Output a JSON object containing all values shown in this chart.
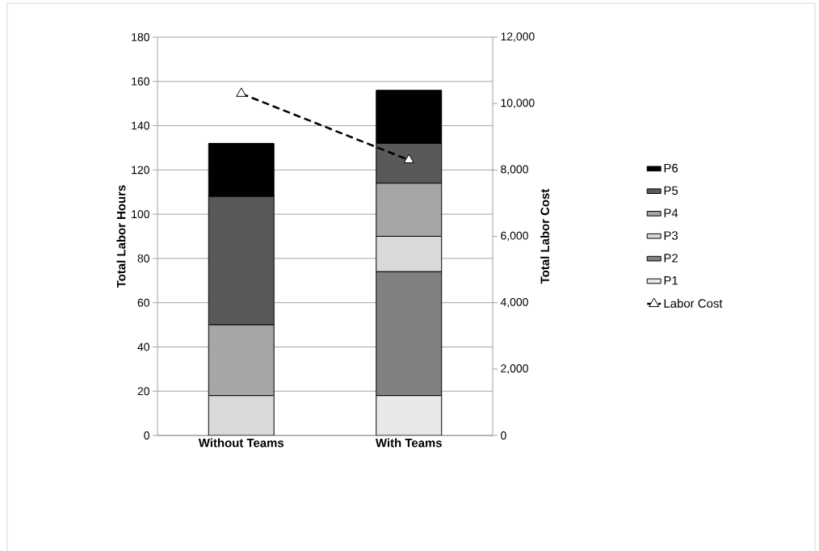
{
  "chart_data": {
    "type": "bar",
    "stacked": true,
    "categories": [
      "Without Teams",
      "With Teams"
    ],
    "ylabel": "Total Labor Hours",
    "y2label": "Total Labor Cost",
    "ylim": [
      0,
      180
    ],
    "yticks": [
      0,
      20,
      40,
      60,
      80,
      100,
      120,
      140,
      160,
      180
    ],
    "y2lim": [
      0,
      12000
    ],
    "y2ticks": [
      0,
      {
        "value": 2000,
        "label": "2,000"
      },
      {
        "value": 4000,
        "label": "4,000"
      },
      {
        "value": 6000,
        "label": "6,000"
      },
      {
        "value": 8000,
        "label": "8,000"
      },
      {
        "value": 10000,
        "label": "10,000"
      },
      {
        "value": 12000,
        "label": "12,000"
      }
    ],
    "grid": "y",
    "legend": "right",
    "series": [
      {
        "name": "P1",
        "color": "#e8e8e8",
        "values": [
          0,
          18
        ]
      },
      {
        "name": "P2",
        "color": "#808080",
        "values": [
          0,
          56
        ]
      },
      {
        "name": "P3",
        "color": "#d9d9d9",
        "values": [
          18,
          16
        ]
      },
      {
        "name": "P4",
        "color": "#a6a6a6",
        "values": [
          32,
          24
        ]
      },
      {
        "name": "P5",
        "color": "#595959",
        "values": [
          58,
          18
        ]
      },
      {
        "name": "P6",
        "color": "#000000",
        "values": [
          24,
          24
        ]
      },
      {
        "name": "Labor Cost",
        "type": "line",
        "axis": "y2",
        "color": "#000000",
        "marker": "triangle",
        "line_style": "dashed",
        "values": [
          10300,
          8300
        ]
      }
    ]
  }
}
